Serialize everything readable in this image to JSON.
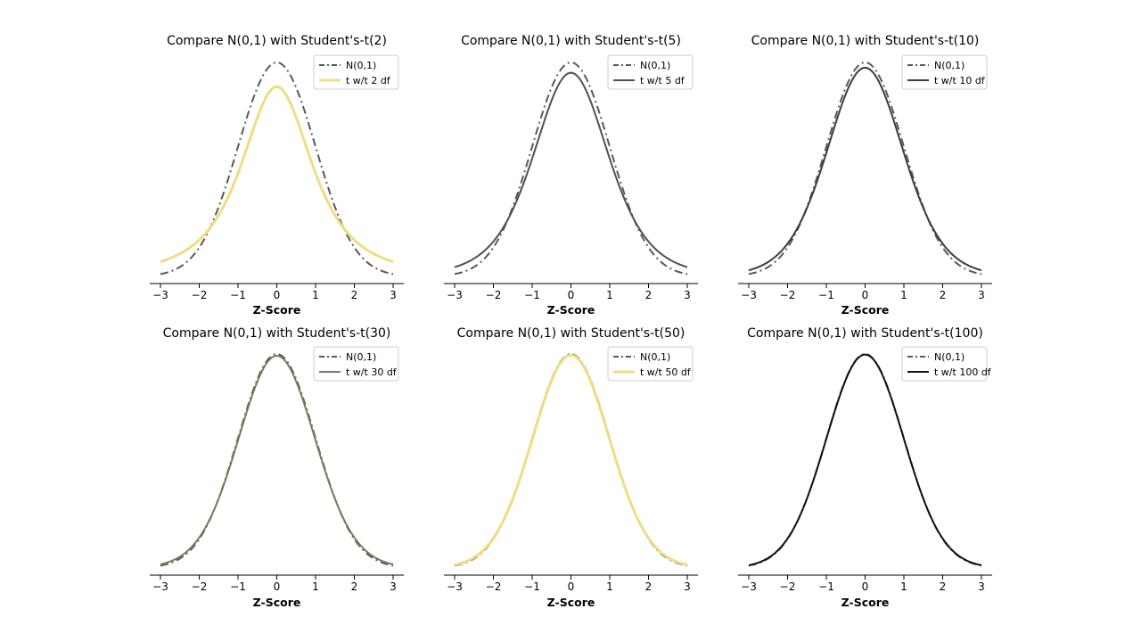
{
  "chart_data": [
    {
      "type": "line",
      "title": "Compare N(0,1) with Student's-t(2)",
      "xlabel": "Z-Score",
      "ylabel": "",
      "xlim": [
        -3,
        3
      ],
      "xticks": [
        "−3",
        "−2",
        "−1",
        "0",
        "1",
        "2",
        "3"
      ],
      "df": 2,
      "legend_position": "top-right",
      "series": [
        {
          "name": "N(0,1)",
          "style": "dashdot",
          "color": "#595959",
          "y": [
            0.0044,
            0.054,
            0.242,
            0.399,
            0.242,
            0.054,
            0.0044
          ]
        },
        {
          "name": "t w/t 2 df",
          "style": "solid",
          "color": "#f0dc82",
          "y": [
            0.0274,
            0.068,
            0.192,
            0.354,
            0.192,
            0.068,
            0.0274
          ]
        }
      ]
    },
    {
      "type": "line",
      "title": "Compare N(0,1) with Student's-t(5)",
      "xlabel": "Z-Score",
      "ylabel": "",
      "xlim": [
        -3,
        3
      ],
      "xticks": [
        "−3",
        "−2",
        "−1",
        "0",
        "1",
        "2",
        "3"
      ],
      "df": 5,
      "legend_position": "top-right",
      "series": [
        {
          "name": "N(0,1)",
          "style": "dashdot",
          "color": "#595959",
          "y": [
            0.0044,
            0.054,
            0.242,
            0.399,
            0.242,
            0.054,
            0.0044
          ]
        },
        {
          "name": "t w/t 5 df",
          "style": "solid",
          "color": "#505050",
          "y": [
            0.0173,
            0.065,
            0.22,
            0.38,
            0.22,
            0.065,
            0.0173
          ]
        }
      ]
    },
    {
      "type": "line",
      "title": "Compare N(0,1) with Student's-t(10)",
      "xlabel": "Z-Score",
      "ylabel": "",
      "xlim": [
        -3,
        3
      ],
      "xticks": [
        "−3",
        "−2",
        "−1",
        "0",
        "1",
        "2",
        "3"
      ],
      "df": 10,
      "legend_position": "top-right",
      "series": [
        {
          "name": "N(0,1)",
          "style": "dashdot",
          "color": "#595959",
          "y": [
            0.0044,
            0.054,
            0.242,
            0.399,
            0.242,
            0.054,
            0.0044
          ]
        },
        {
          "name": "t w/t 10 df",
          "style": "solid",
          "color": "#3c3c3c",
          "y": [
            0.0114,
            0.061,
            0.23,
            0.389,
            0.23,
            0.061,
            0.0114
          ]
        }
      ]
    },
    {
      "type": "line",
      "title": "Compare N(0,1) with Student's-t(30)",
      "xlabel": "Z-Score",
      "ylabel": "",
      "xlim": [
        -3,
        3
      ],
      "xticks": [
        "−3",
        "−2",
        "−1",
        "0",
        "1",
        "2",
        "3"
      ],
      "df": 30,
      "legend_position": "top-right",
      "series": [
        {
          "name": "N(0,1)",
          "style": "dashdot",
          "color": "#595959",
          "y": [
            0.0044,
            0.054,
            0.242,
            0.399,
            0.242,
            0.054,
            0.0044
          ]
        },
        {
          "name": "t w/t 30 df",
          "style": "solid",
          "color": "#7a7a5c",
          "y": [
            0.0064,
            0.057,
            0.238,
            0.396,
            0.238,
            0.057,
            0.0064
          ]
        }
      ]
    },
    {
      "type": "line",
      "title": "Compare N(0,1) with Student's-t(50)",
      "xlabel": "Z-Score",
      "ylabel": "",
      "xlim": [
        -3,
        3
      ],
      "xticks": [
        "−3",
        "−2",
        "−1",
        "0",
        "1",
        "2",
        "3"
      ],
      "df": 50,
      "legend_position": "top-right",
      "series": [
        {
          "name": "N(0,1)",
          "style": "dashdot",
          "color": "#595959",
          "y": [
            0.0044,
            0.054,
            0.242,
            0.399,
            0.242,
            0.054,
            0.0044
          ]
        },
        {
          "name": "t w/t 50 df",
          "style": "solid",
          "color": "#f0dc82",
          "y": [
            0.0055,
            0.056,
            0.24,
            0.397,
            0.24,
            0.056,
            0.0055
          ]
        }
      ]
    },
    {
      "type": "line",
      "title": "Compare N(0,1) with Student's-t(100)",
      "xlabel": "Z-Score",
      "ylabel": "",
      "xlim": [
        -3,
        3
      ],
      "xticks": [
        "−3",
        "−2",
        "−1",
        "0",
        "1",
        "2",
        "3"
      ],
      "df": 100,
      "legend_position": "top-right",
      "series": [
        {
          "name": "N(0,1)",
          "style": "dashdot",
          "color": "#595959",
          "y": [
            0.0044,
            0.054,
            0.242,
            0.399,
            0.242,
            0.054,
            0.0044
          ]
        },
        {
          "name": "t w/t 100 df",
          "style": "solid",
          "color": "#111111",
          "y": [
            0.0049,
            0.055,
            0.241,
            0.398,
            0.241,
            0.055,
            0.0049
          ]
        }
      ]
    }
  ]
}
